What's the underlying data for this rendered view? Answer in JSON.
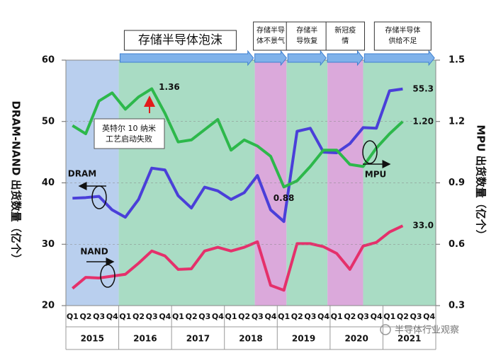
{
  "chart_data": {
    "type": "line",
    "categories": [
      "Q1",
      "Q2",
      "Q3",
      "Q4",
      "Q1",
      "Q2",
      "Q3",
      "Q4",
      "Q1",
      "Q2",
      "Q3",
      "Q4",
      "Q1",
      "Q2",
      "Q3",
      "Q4",
      "Q1",
      "Q2",
      "Q3",
      "Q4",
      "Q1",
      "Q2",
      "Q3",
      "Q4",
      "Q1",
      "Q2",
      "Q3",
      "Q4"
    ],
    "years": [
      "2015",
      "2016",
      "2017",
      "2018",
      "2019",
      "2020",
      "2021"
    ],
    "y_label": "DRAM-NAND 出货数量（亿个）",
    "y2_label": "MPU 出货数量（亿个）",
    "ylim": [
      20,
      60
    ],
    "yticks": [
      20,
      30,
      40,
      50,
      60
    ],
    "y2lim": [
      0.3,
      1.5
    ],
    "y2ticks": [
      0.3,
      0.6,
      0.9,
      1.2,
      1.5
    ],
    "grid": true,
    "series": [
      {
        "name": "DRAM",
        "color": "#4a3fd9",
        "axis": "y",
        "values": [
          37.5,
          37.6,
          37.8,
          35.6,
          34.4,
          37.3,
          42.4,
          42.1,
          37.9,
          35.9,
          39.3,
          38.7,
          37.3,
          38.4,
          41.2,
          35.6,
          33.7,
          48.4,
          48.9,
          45.0,
          44.9,
          46.4,
          49.0,
          48.9,
          55.0,
          55.3,
          null,
          null
        ],
        "value_labels": [
          null,
          null,
          null,
          null,
          null,
          null,
          null,
          null,
          null,
          null,
          null,
          null,
          null,
          null,
          null,
          null,
          null,
          null,
          null,
          null,
          null,
          null,
          null,
          null,
          null,
          "55.3",
          null,
          null
        ]
      },
      {
        "name": "NAND",
        "color": "#e5306b",
        "axis": "y",
        "values": [
          22.8,
          24.6,
          24.5,
          24.8,
          25.1,
          26.9,
          28.9,
          28.1,
          25.9,
          26.0,
          28.9,
          29.5,
          28.9,
          29.5,
          30.4,
          23.3,
          22.5,
          30.1,
          30.1,
          29.6,
          28.5,
          25.9,
          29.7,
          30.3,
          32.0,
          33.0,
          null,
          null
        ],
        "value_labels": [
          null,
          null,
          null,
          null,
          null,
          null,
          null,
          null,
          null,
          null,
          null,
          null,
          null,
          null,
          null,
          null,
          null,
          null,
          null,
          null,
          null,
          null,
          null,
          null,
          null,
          "33.0",
          null,
          null
        ]
      },
      {
        "name": "MPU",
        "color": "#2db84b",
        "axis": "y2",
        "values": [
          1.18,
          1.14,
          1.3,
          1.34,
          1.26,
          1.32,
          1.36,
          1.24,
          1.1,
          1.11,
          1.16,
          1.21,
          1.06,
          1.11,
          1.08,
          1.03,
          0.88,
          0.91,
          0.98,
          1.06,
          1.06,
          0.99,
          0.98,
          1.07,
          1.14,
          1.2,
          null,
          null
        ],
        "value_labels": [
          null,
          null,
          null,
          null,
          null,
          null,
          "1.36",
          null,
          null,
          null,
          null,
          null,
          null,
          null,
          null,
          null,
          "0.88",
          null,
          null,
          null,
          null,
          null,
          null,
          null,
          null,
          "1.20",
          null,
          null
        ]
      }
    ],
    "periods": [
      {
        "lines": [
          "存储半导体泡沫"
        ]
      },
      {
        "lines": [
          "存储半导",
          "体不景气"
        ]
      },
      {
        "lines": [
          "存储半",
          "导恢复"
        ]
      },
      {
        "lines": [
          "新冠疫",
          "情"
        ]
      },
      {
        "lines": [
          "存储半导体",
          "供给不足"
        ]
      }
    ],
    "annotation": [
      "英特尔 10 纳米",
      "工艺启动失败"
    ],
    "watermark": "半导体行业观察"
  }
}
